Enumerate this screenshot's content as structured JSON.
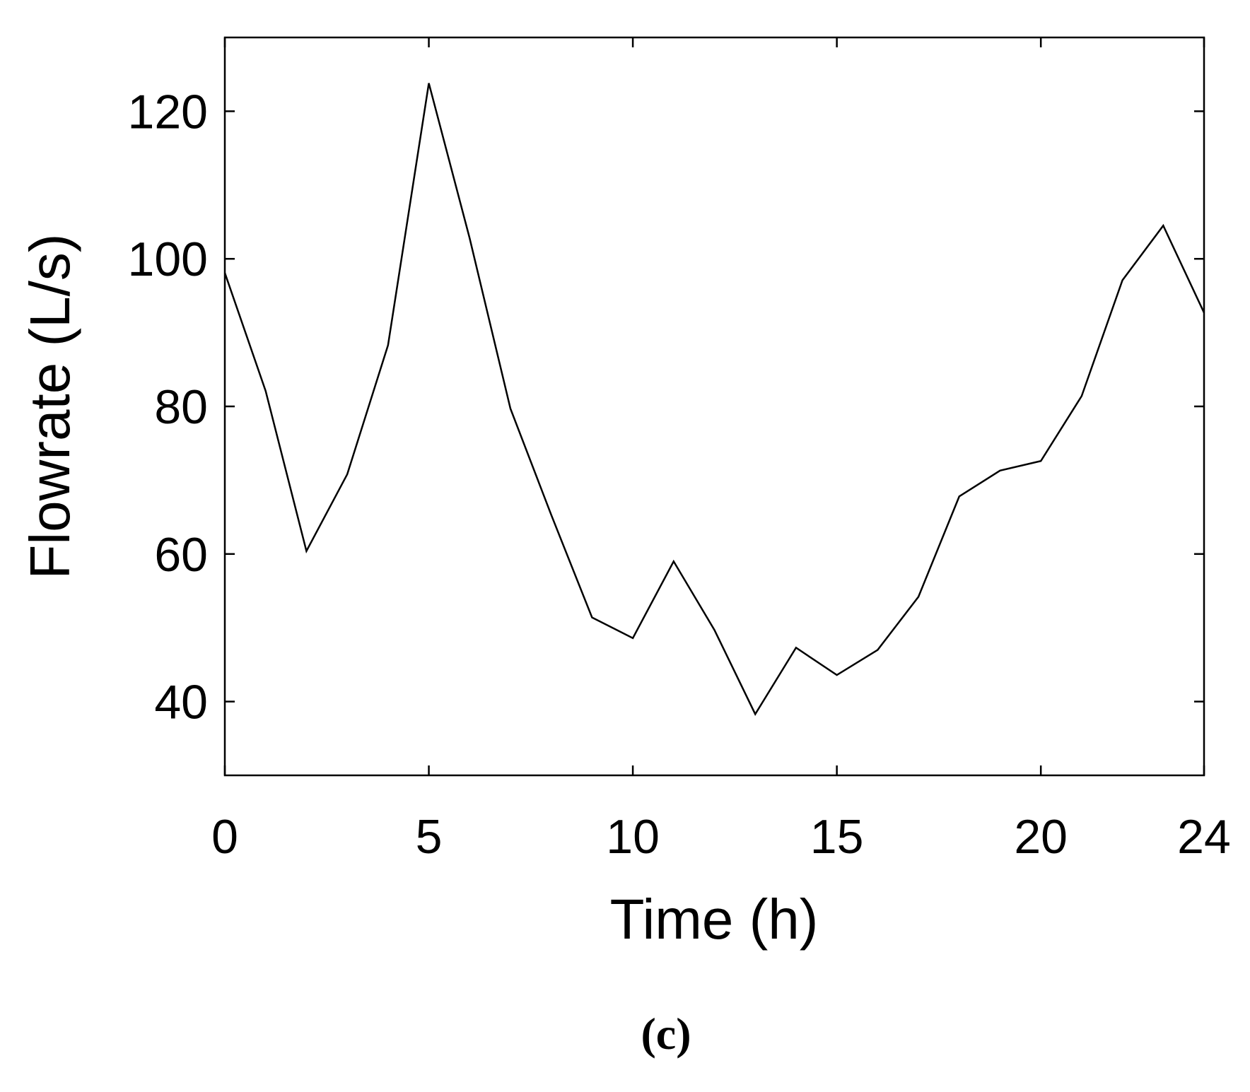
{
  "chart_data": {
    "type": "line",
    "caption": "(c)",
    "xlabel": "Time (h)",
    "ylabel": "Flowrate (L/s)",
    "x": [
      0,
      1,
      2,
      3,
      4,
      5,
      6,
      7,
      8,
      9,
      10,
      11,
      12,
      13,
      14,
      15,
      16,
      17,
      18,
      19,
      20,
      21,
      22,
      23,
      24
    ],
    "series": [
      {
        "name": "Flowrate",
        "color": "#000000",
        "values": [
          98.1,
          82.1,
          60.4,
          70.8,
          88.3,
          123.8,
          102.8,
          79.7,
          65.3,
          51.4,
          48.6,
          59.0,
          49.7,
          38.3,
          47.3,
          43.6,
          47.0,
          54.2,
          67.8,
          71.3,
          72.6,
          81.4,
          97.1,
          104.5,
          92.7
        ]
      }
    ],
    "xlim": [
      0,
      24
    ],
    "xticks": [
      0,
      5,
      10,
      15,
      20,
      24
    ],
    "ylim": [
      30,
      130
    ],
    "yticks": [
      40,
      60,
      80,
      100,
      120
    ],
    "grid": false
  }
}
